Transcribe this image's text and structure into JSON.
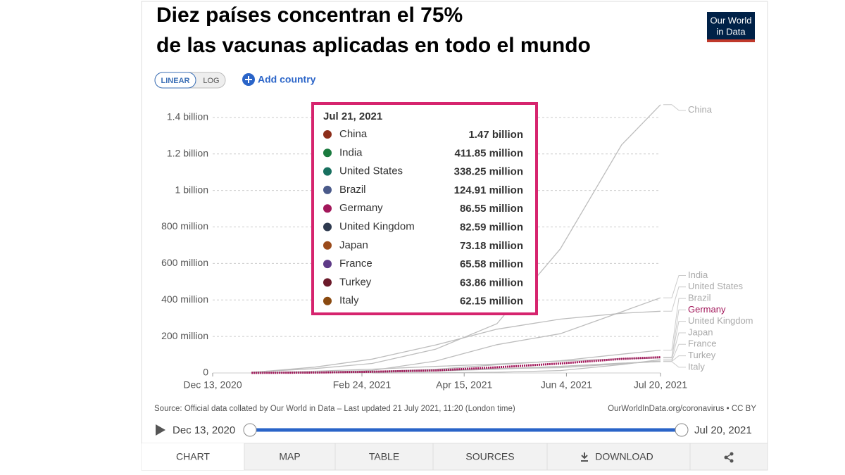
{
  "ui": {
    "title_lines": [
      "Diez países concentran el 75%",
      "de las vacunas aplicadas en todo el mundo"
    ],
    "logo_lines": [
      "Our World",
      "in Data"
    ],
    "scale_buttons": [
      "LINEAR",
      "LOG"
    ],
    "add_country": "Add country",
    "source": "Source: Official data collated by Our World in Data – Last updated 21 July 2021, 11:20 (London time)",
    "credit": "OurWorldInData.org/coronavirus • CC BY",
    "timeline_start": "Dec 13, 2020",
    "timeline_end": "Jul 20, 2021",
    "tabs": [
      "CHART",
      "MAP",
      "TABLE",
      "SOURCES",
      "DOWNLOAD"
    ]
  },
  "chart_data": {
    "type": "line",
    "highlight": "Germany",
    "x": [
      "2020-12-13",
      "2021-01-01",
      "2021-02-01",
      "2021-03-01",
      "2021-04-01",
      "2021-05-01",
      "2021-06-01",
      "2021-07-01",
      "2021-07-20"
    ],
    "xlim": [
      "2020-12-13",
      "2021-07-20"
    ],
    "xticks": [
      {
        "value": "2020-12-13",
        "label": "Dec 13, 2020"
      },
      {
        "value": "2021-02-24",
        "label": "Feb 24, 2021"
      },
      {
        "value": "2021-04-15",
        "label": "Apr 15, 2021"
      },
      {
        "value": "2021-06-04",
        "label": "Jun 4, 2021"
      },
      {
        "value": "2021-07-20",
        "label": "Jul 20, 2021"
      }
    ],
    "ylim": [
      0,
      1500000000
    ],
    "yticks": [
      0,
      {
        "value": 200000000,
        "label": "200 million"
      },
      {
        "value": 400000000,
        "label": "400 million"
      },
      {
        "value": 600000000,
        "label": "600 million"
      },
      {
        "value": 800000000,
        "label": "800 million"
      },
      {
        "value": 1000000000,
        "label": "1 billion"
      },
      {
        "value": 1200000000,
        "label": "1.2 billion"
      },
      {
        "value": 1400000000,
        "label": "1.4 billion"
      }
    ],
    "grid": true,
    "series": [
      {
        "name": "China",
        "color": "#8c2d19",
        "values": [
          null,
          4500000,
          24000000,
          52000000,
          130000000,
          270000000,
          680000000,
          1250000000,
          1470000000
        ]
      },
      {
        "name": "India",
        "color": "#1a7a3e",
        "values": [
          null,
          null,
          4000000,
          14000000,
          65000000,
          155000000,
          215000000,
          335000000,
          411850000
        ]
      },
      {
        "name": "United States",
        "color": "#18705f",
        "values": [
          null,
          2800000,
          32000000,
          76000000,
          153000000,
          240000000,
          295000000,
          327000000,
          338250000
        ]
      },
      {
        "name": "Brazil",
        "color": "#4a5a8a",
        "values": [
          null,
          null,
          2000000,
          8000000,
          20000000,
          45000000,
          67000000,
          103000000,
          124910000
        ]
      },
      {
        "name": "Germany",
        "color": "#a2175a",
        "values": [
          null,
          200000,
          2500000,
          6500000,
          14000000,
          31000000,
          52000000,
          77000000,
          86550000
        ]
      },
      {
        "name": "United Kingdom",
        "color": "#2e3a4f",
        "values": [
          null,
          1000000,
          9500000,
          21000000,
          36000000,
          49000000,
          65000000,
          78000000,
          82590000
        ]
      },
      {
        "name": "Japan",
        "color": "#9a4a1a",
        "values": [
          null,
          null,
          null,
          100000,
          900000,
          3800000,
          13000000,
          46000000,
          73180000
        ]
      },
      {
        "name": "France",
        "color": "#5e3a87",
        "values": [
          null,
          100000,
          1600000,
          4200000,
          11000000,
          22000000,
          36000000,
          52000000,
          65580000
        ]
      },
      {
        "name": "Turkey",
        "color": "#6b1a2a",
        "values": [
          null,
          null,
          2000000,
          9000000,
          17000000,
          24000000,
          29000000,
          50000000,
          63860000
        ]
      },
      {
        "name": "Italy",
        "color": "#8a4a10",
        "values": [
          null,
          50000,
          2000000,
          4500000,
          10000000,
          21000000,
          36000000,
          54000000,
          62150000
        ]
      }
    ],
    "tooltip": {
      "title": "Jul 21, 2021",
      "values": [
        1470000000,
        411850000,
        338250000,
        124910000,
        86550000,
        82590000,
        73180000,
        65580000,
        63860000,
        62150000
      ],
      "value_labels": [
        "1.47 billion",
        "411.85 million",
        "338.25 million",
        "124.91 million",
        "86.55 million",
        "82.59 million",
        "73.18 million",
        "65.58 million",
        "63.86 million",
        "62.15 million"
      ]
    }
  }
}
